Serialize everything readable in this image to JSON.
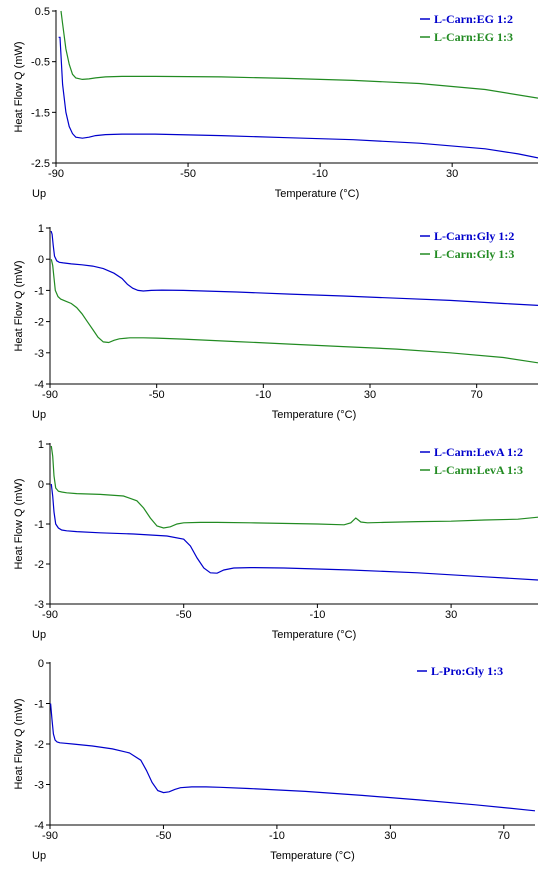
{
  "chart_data": [
    {
      "type": "line",
      "xlabel": "Temperature (°C)",
      "ylabel": "Heat Flow Q (mW)",
      "corner_label": "Up",
      "xlim": [
        -90,
        56
      ],
      "ylim": [
        -2.5,
        0.5
      ],
      "xticks": [
        -90,
        -50,
        -10,
        30
      ],
      "yticks": [
        0.5,
        -0.5,
        -1.5,
        -2.5
      ],
      "legend_position": "top-right",
      "series": [
        {
          "name": "L-Carn:EG 1:2",
          "color": "#0000cc",
          "x": [
            -89.2,
            -88.8,
            -88,
            -87,
            -86,
            -85,
            -84,
            -82,
            -80,
            -78,
            -75,
            -70,
            -60,
            -40,
            -20,
            0,
            20,
            40,
            50,
            56
          ],
          "y": [
            -0.02,
            -0.02,
            -0.95,
            -1.5,
            -1.78,
            -1.92,
            -1.99,
            -2.01,
            -1.99,
            -1.96,
            -1.94,
            -1.93,
            -1.93,
            -1.96,
            -2.0,
            -2.04,
            -2.11,
            -2.22,
            -2.32,
            -2.4
          ]
        },
        {
          "name": "L-Carn:EG 1:3",
          "color": "#228b22",
          "x": [
            -88.5,
            -88,
            -87,
            -86,
            -85,
            -84,
            -82,
            -80,
            -78,
            -75,
            -70,
            -60,
            -40,
            -20,
            0,
            20,
            40,
            56
          ],
          "y": [
            0.5,
            0.25,
            -0.25,
            -0.55,
            -0.75,
            -0.82,
            -0.85,
            -0.84,
            -0.82,
            -0.8,
            -0.79,
            -0.79,
            -0.8,
            -0.83,
            -0.87,
            -0.93,
            -1.05,
            -1.22
          ]
        }
      ]
    },
    {
      "type": "line",
      "xlabel": "Temperature (°C)",
      "ylabel": "Heat Flow Q (mW)",
      "corner_label": "Up",
      "xlim": [
        -90,
        93
      ],
      "ylim": [
        -4,
        1
      ],
      "xticks": [
        -90,
        -50,
        -10,
        30,
        70
      ],
      "yticks": [
        1,
        0,
        -1,
        -2,
        -3,
        -4
      ],
      "legend_position": "top-right",
      "series": [
        {
          "name": "L-Carn:Gly 1:2",
          "color": "#0000cc",
          "x": [
            -89.6,
            -89.2,
            -88.8,
            -88.3,
            -87.5,
            -86.5,
            -85,
            -82,
            -78,
            -74,
            -70,
            -66,
            -63,
            -61,
            -59,
            -57,
            -55,
            -52,
            -48,
            -40,
            -20,
            0,
            20,
            40,
            60,
            80,
            93
          ],
          "y": [
            0.9,
            0.8,
            0.45,
            0.1,
            -0.05,
            -0.1,
            -0.12,
            -0.15,
            -0.18,
            -0.22,
            -0.3,
            -0.45,
            -0.62,
            -0.8,
            -0.93,
            -1.0,
            -1.02,
            -1.0,
            -0.99,
            -1.0,
            -1.05,
            -1.12,
            -1.18,
            -1.25,
            -1.32,
            -1.42,
            -1.48
          ]
        },
        {
          "name": "L-Carn:Gly 1:3",
          "color": "#228b22",
          "x": [
            -89.5,
            -89,
            -88.5,
            -88,
            -87,
            -86,
            -84,
            -82,
            -80,
            -78,
            -76,
            -74,
            -72,
            -70,
            -68,
            -66,
            -64,
            -60,
            -55,
            -50,
            -40,
            -20,
            0,
            20,
            40,
            60,
            80,
            93
          ],
          "y": [
            0,
            -0.2,
            -0.6,
            -1.0,
            -1.2,
            -1.28,
            -1.35,
            -1.42,
            -1.55,
            -1.75,
            -2.0,
            -2.25,
            -2.5,
            -2.65,
            -2.67,
            -2.6,
            -2.55,
            -2.52,
            -2.52,
            -2.53,
            -2.56,
            -2.64,
            -2.72,
            -2.8,
            -2.88,
            -3.0,
            -3.15,
            -3.32
          ]
        }
      ]
    },
    {
      "type": "line",
      "xlabel": "Temperature (°C)",
      "ylabel": "Heat Flow Q (mW)",
      "corner_label": "Up",
      "xlim": [
        -90,
        56
      ],
      "ylim": [
        -3,
        1
      ],
      "xticks": [
        -90,
        -50,
        -10,
        30
      ],
      "yticks": [
        1,
        0,
        -1,
        -2,
        -3
      ],
      "legend_position": "top-right",
      "series": [
        {
          "name": "L-Carn:LevA 1:2",
          "color": "#0000cc",
          "x": [
            -89.6,
            -89.2,
            -88.8,
            -88.3,
            -87.5,
            -86.5,
            -85,
            -82,
            -75,
            -65,
            -55,
            -50,
            -48,
            -46,
            -44,
            -42,
            -40,
            -38,
            -35,
            -30,
            -20,
            0,
            20,
            40,
            56
          ],
          "y": [
            0,
            -0.3,
            -0.7,
            -1.0,
            -1.1,
            -1.15,
            -1.17,
            -1.19,
            -1.22,
            -1.25,
            -1.3,
            -1.38,
            -1.55,
            -1.85,
            -2.1,
            -2.22,
            -2.23,
            -2.15,
            -2.1,
            -2.09,
            -2.1,
            -2.15,
            -2.22,
            -2.32,
            -2.4
          ]
        },
        {
          "name": "L-Carn:LevA 1:3",
          "color": "#228b22",
          "x": [
            -89.6,
            -89.2,
            -88.8,
            -88.3,
            -87.5,
            -86.5,
            -85,
            -82,
            -75,
            -68,
            -64,
            -62,
            -60,
            -58,
            -56,
            -54,
            -52,
            -50,
            -45,
            -40,
            -30,
            -10,
            -2,
            0,
            1.5,
            3,
            5,
            10,
            20,
            30,
            40,
            50,
            56
          ],
          "y": [
            0.95,
            0.7,
            0.2,
            -0.1,
            -0.18,
            -0.2,
            -0.22,
            -0.24,
            -0.26,
            -0.3,
            -0.42,
            -0.6,
            -0.85,
            -1.05,
            -1.1,
            -1.07,
            -1.0,
            -0.97,
            -0.96,
            -0.96,
            -0.97,
            -1.0,
            -1.02,
            -0.97,
            -0.85,
            -0.95,
            -0.97,
            -0.96,
            -0.94,
            -0.93,
            -0.9,
            -0.88,
            -0.83
          ]
        }
      ]
    },
    {
      "type": "line",
      "xlabel": "Temperature (°C)",
      "ylabel": "Heat Flow Q (mW)",
      "corner_label": "Up",
      "xlim": [
        -90,
        81
      ],
      "ylim": [
        -4,
        0
      ],
      "xticks": [
        -90,
        -50,
        -10,
        30,
        70
      ],
      "yticks": [
        0,
        -1,
        -2,
        -3,
        -4
      ],
      "legend_position": "top-right",
      "series": [
        {
          "name": "L-Pro:Gly 1:3",
          "color": "#0000cc",
          "x": [
            -89.8,
            -89.3,
            -88.8,
            -88.2,
            -87.5,
            -86.5,
            -85,
            -82,
            -75,
            -68,
            -62,
            -58,
            -56,
            -54,
            -52,
            -50,
            -48,
            -46,
            -44,
            -40,
            -35,
            -30,
            -20,
            0,
            20,
            40,
            60,
            70,
            81
          ],
          "y": [
            -1.0,
            -1.4,
            -1.75,
            -1.9,
            -1.95,
            -1.97,
            -1.98,
            -2.0,
            -2.05,
            -2.12,
            -2.22,
            -2.4,
            -2.65,
            -2.95,
            -3.15,
            -3.2,
            -3.18,
            -3.12,
            -3.08,
            -3.06,
            -3.06,
            -3.07,
            -3.1,
            -3.17,
            -3.27,
            -3.38,
            -3.5,
            -3.57,
            -3.65
          ]
        }
      ]
    }
  ]
}
